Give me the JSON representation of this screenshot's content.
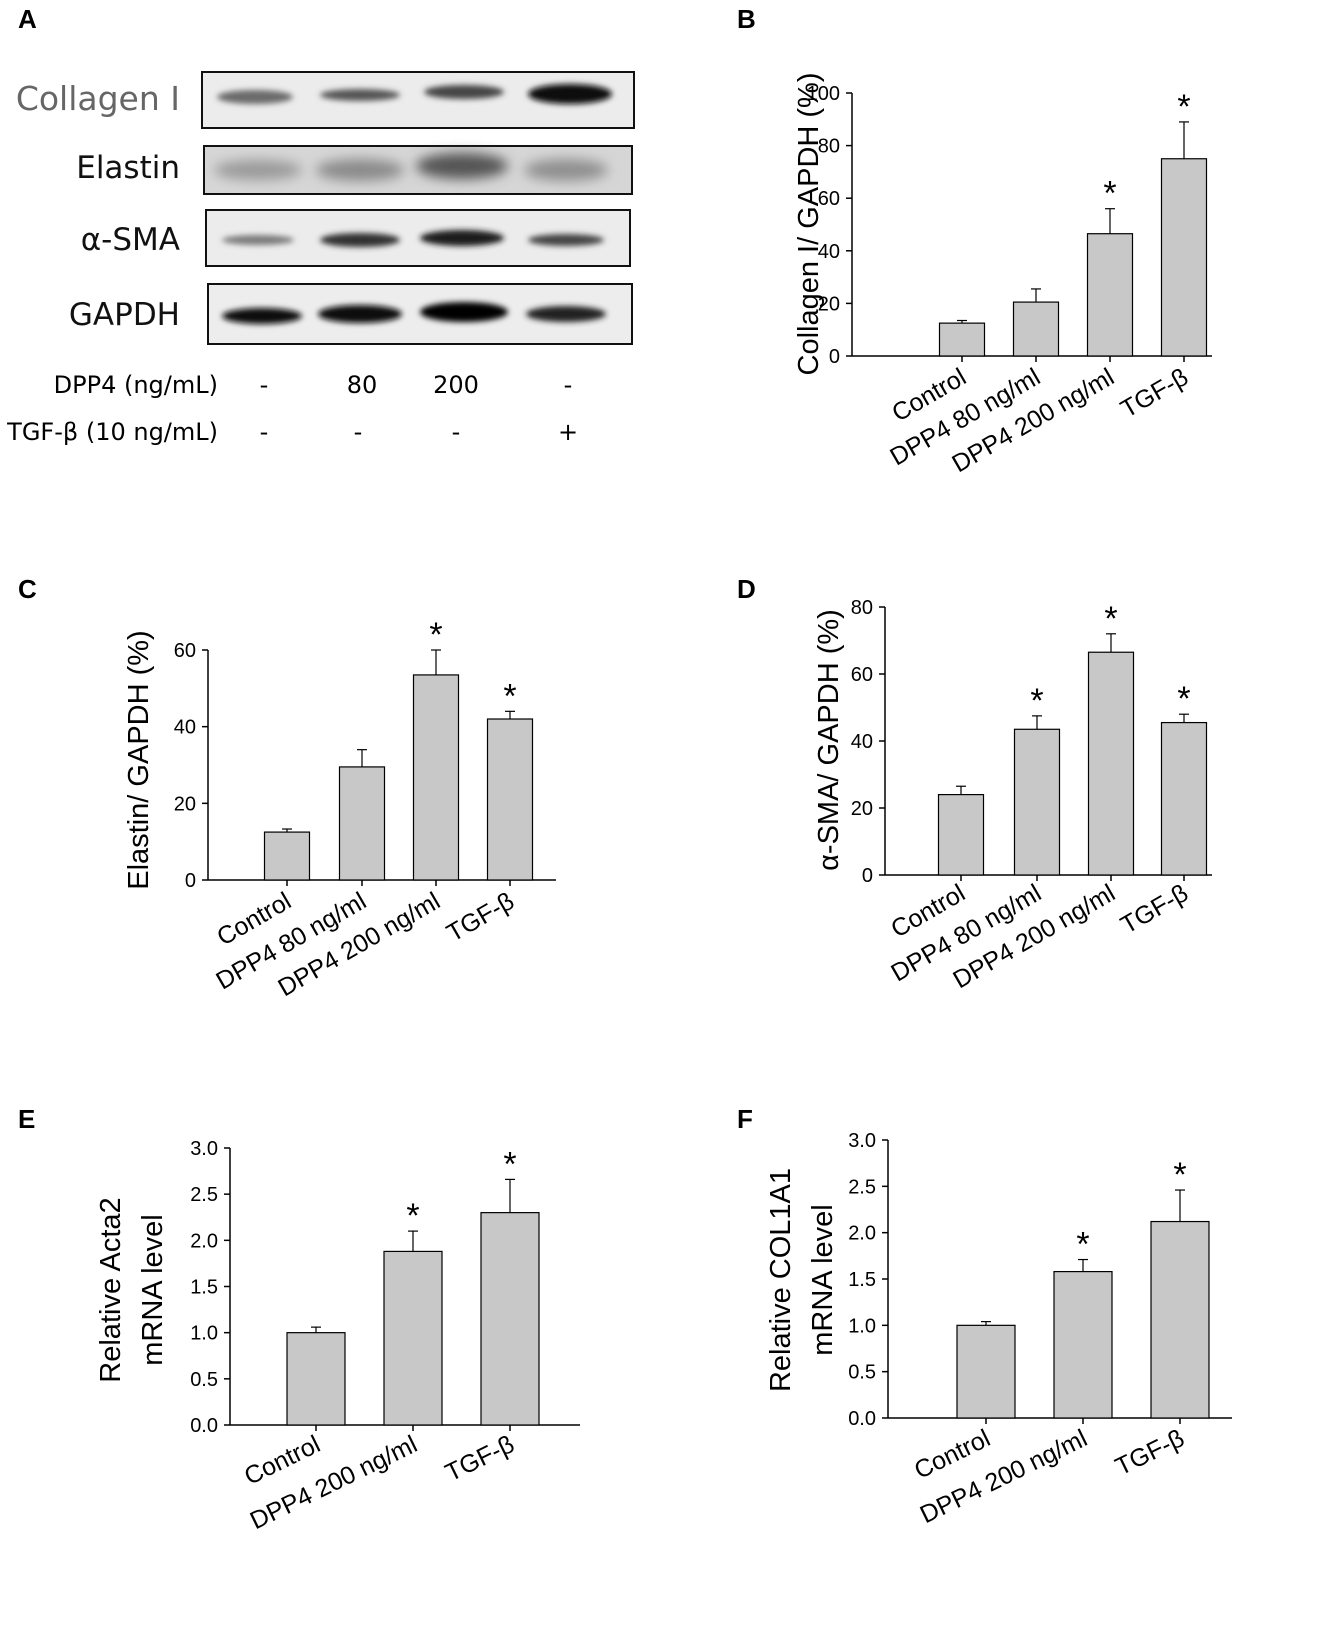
{
  "panel_a": {
    "letter": "A",
    "rows": [
      {
        "label": "Collagen I",
        "color": "#666666"
      },
      {
        "label": "Elastin",
        "color": "#111111"
      },
      {
        "label": "α-SMA",
        "color": "#111111"
      },
      {
        "label": "GAPDH",
        "color": "#111111"
      }
    ],
    "conditions": [
      {
        "label": "DPP4 (ng/mL)",
        "values": [
          "-",
          "80",
          "200",
          "-"
        ]
      },
      {
        "label": "TGF-β (10 ng/mL)",
        "values": [
          "-",
          "-",
          "-",
          "+"
        ]
      }
    ]
  },
  "chart_data": [
    {
      "panel": "B",
      "type": "bar",
      "categories": [
        "Control",
        "DPP4 80 ng/ml",
        "DPP4 200 ng/ml",
        "TGF-β"
      ],
      "values": [
        12.5,
        20.5,
        46.5,
        75
      ],
      "errors": [
        1,
        5,
        9.5,
        14
      ],
      "significant": [
        false,
        false,
        true,
        true
      ],
      "marker": "*",
      "ylabel": "Collagen I/ GAPDH (%)",
      "ylim": [
        0,
        100
      ],
      "yticks": [
        "0",
        "20",
        "40",
        "60",
        "80",
        "100"
      ],
      "ytick_values": [
        0,
        20,
        40,
        60,
        80,
        100
      ],
      "bar_color": "#c8c8c8"
    },
    {
      "panel": "C",
      "type": "bar",
      "categories": [
        "Control",
        "DPP4 80 ng/ml",
        "DPP4 200 ng/ml",
        "TGF-β"
      ],
      "values": [
        12.5,
        29.5,
        53.5,
        42
      ],
      "errors": [
        0.8,
        4.5,
        6.5,
        2
      ],
      "significant": [
        false,
        false,
        true,
        true
      ],
      "marker": "*",
      "ylabel": "Elastin/ GAPDH (%)",
      "ylim": [
        0,
        60
      ],
      "yticks": [
        "0",
        "20",
        "40",
        "60"
      ],
      "ytick_values": [
        0,
        20,
        40,
        60
      ],
      "bar_color": "#c8c8c8"
    },
    {
      "panel": "D",
      "type": "bar",
      "categories": [
        "Control",
        "DPP4 80 ng/ml",
        "DPP4 200 ng/ml",
        "TGF-β"
      ],
      "values": [
        24,
        43.5,
        66.5,
        45.5
      ],
      "errors": [
        2.5,
        4,
        5.5,
        2.5
      ],
      "significant": [
        false,
        true,
        true,
        true
      ],
      "marker": "*",
      "ylabel": "α-SMA/ GAPDH (%)",
      "ylim": [
        0,
        80
      ],
      "yticks": [
        "0",
        "20",
        "40",
        "60",
        "80"
      ],
      "ytick_values": [
        0,
        20,
        40,
        60,
        80
      ],
      "bar_color": "#c8c8c8"
    },
    {
      "panel": "E",
      "type": "bar",
      "categories": [
        "Control",
        "DPP4 200 ng/ml",
        "TGF-β"
      ],
      "values": [
        1.0,
        1.88,
        2.3
      ],
      "errors": [
        0.06,
        0.22,
        0.36
      ],
      "significant": [
        false,
        true,
        true
      ],
      "marker": "*",
      "ylabel": [
        "Relative Acta2",
        "mRNA level"
      ],
      "ylim": [
        0,
        3.0
      ],
      "yticks": [
        "0.0",
        "0.5",
        "1.0",
        "1.5",
        "2.0",
        "2.5",
        "3.0"
      ],
      "ytick_values": [
        0,
        0.5,
        1,
        1.5,
        2,
        2.5,
        3
      ],
      "bar_color": "#c8c8c8"
    },
    {
      "panel": "F",
      "type": "bar",
      "categories": [
        "Control",
        "DPP4 200 ng/ml",
        "TGF-β"
      ],
      "values": [
        1.0,
        1.58,
        2.12
      ],
      "errors": [
        0.04,
        0.13,
        0.34
      ],
      "significant": [
        false,
        true,
        true
      ],
      "marker": "*",
      "ylabel": [
        "Relative COL1A1",
        "mRNA level"
      ],
      "ylim": [
        0,
        3.0
      ],
      "yticks": [
        "0.0",
        "0.5",
        "1.0",
        "1.5",
        "2.0",
        "2.5",
        "3.0"
      ],
      "ytick_values": [
        0,
        0.5,
        1,
        1.5,
        2,
        2.5,
        3
      ],
      "bar_color": "#c8c8c8"
    }
  ]
}
